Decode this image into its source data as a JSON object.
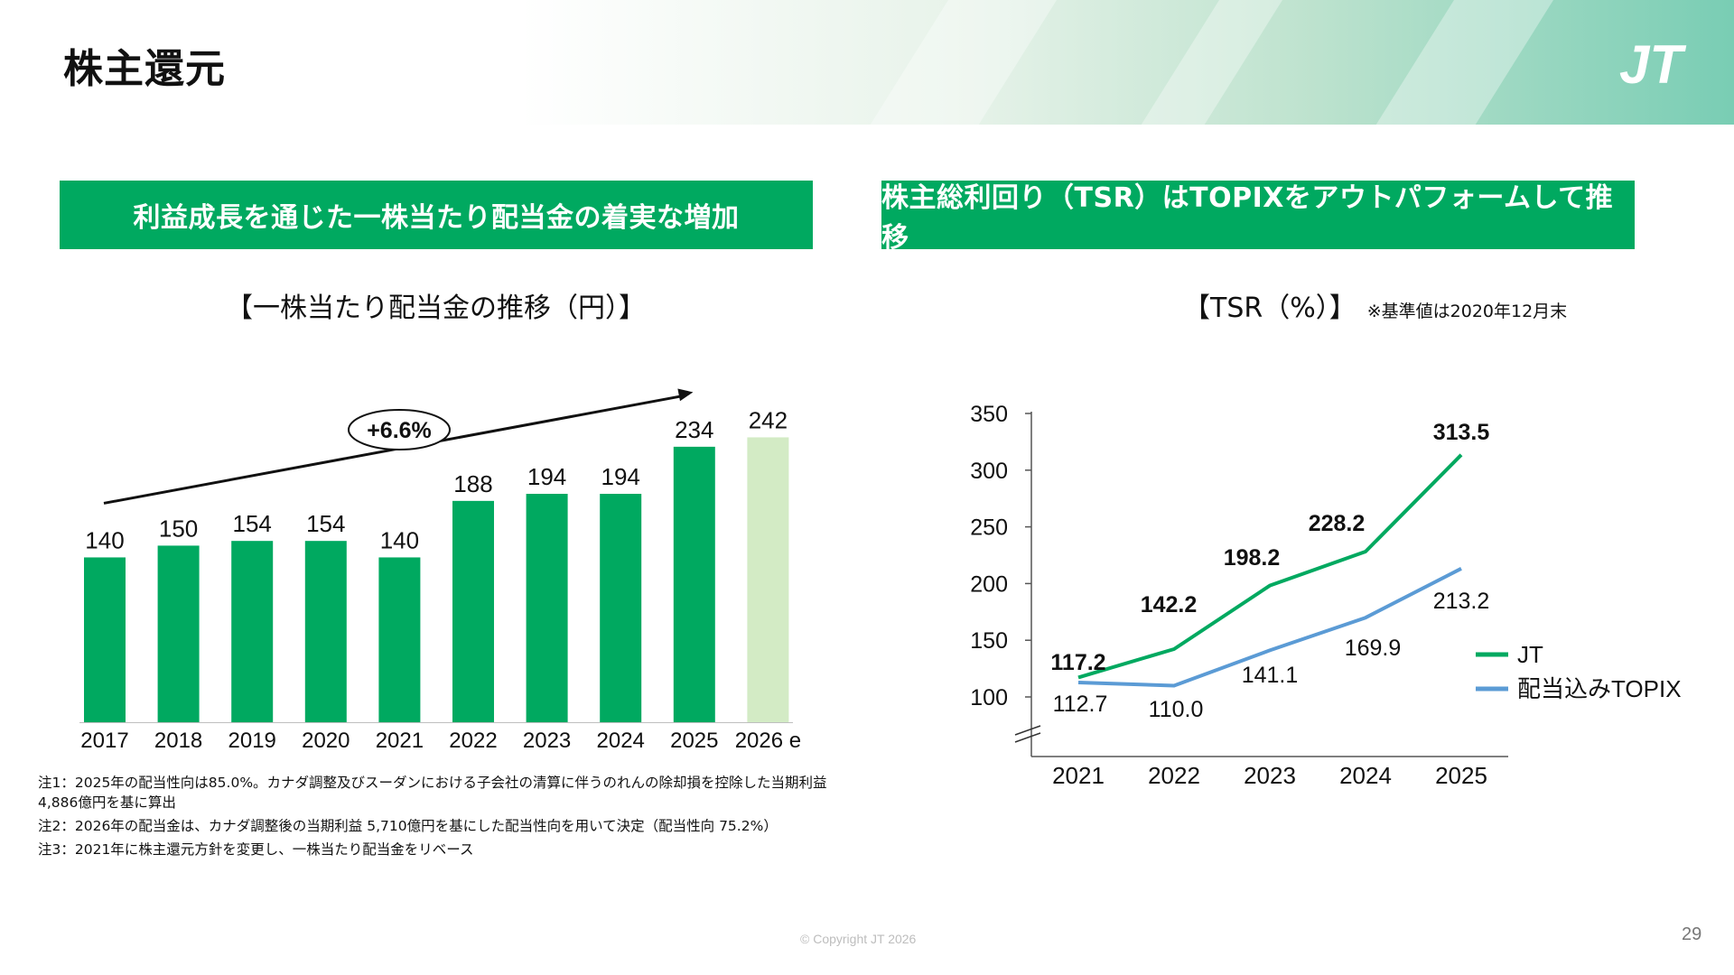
{
  "page": {
    "title": "株主還元",
    "logo_text": "JT",
    "copyright": "© Copyright JT 2026",
    "page_number": "29"
  },
  "left": {
    "banner": "利益成長を通じた一株当たり配当金の着実な増加",
    "chart_title": "【一株当たり配当金の推移（円）】",
    "growth_label": "+6.6%",
    "notes": [
      "注1：2025年の配当性向は85.0%。カナダ調整及びスーダンにおける子会社の清算に伴うのれんの除却損を控除した当期利益 4,886億円を基に算出",
      "注2：2026年の配当金は、カナダ調整後の当期利益 5,710億円を基にした配当性向を用いて決定（配当性向 75.2%）",
      "注3：2021年に株主還元方針を変更し、一株当たり配当金をリベース"
    ]
  },
  "right": {
    "banner": "株主総利回り（TSR）はTOPIXをアウトパフォームして推移",
    "chart_title": "【TSR（%）】",
    "chart_note": "※基準値は2020年12月末"
  },
  "colors": {
    "green": "#00a960",
    "light_green": "#d3ebc5",
    "blue": "#5b9bd5",
    "text": "#111111"
  },
  "chart_data": [
    {
      "type": "bar",
      "title": "【一株当たり配当金の推移（円）】",
      "categories": [
        "2017",
        "2018",
        "2019",
        "2020",
        "2021",
        "2022",
        "2023",
        "2024",
        "2025",
        "2026 e"
      ],
      "values": [
        140,
        150,
        154,
        154,
        140,
        188,
        194,
        194,
        234,
        242
      ],
      "labels": [
        "140",
        "150",
        "154",
        "154",
        "140",
        "188",
        "194",
        "194",
        "234",
        "242"
      ],
      "estimate_index": 9,
      "annotation": "+6.6%",
      "ylim": [
        0,
        242
      ]
    },
    {
      "type": "line",
      "title": "【TSR（%）】",
      "x": [
        "2021",
        "2022",
        "2023",
        "2024",
        "2025"
      ],
      "yticks": [
        "100",
        "150",
        "200",
        "250",
        "300",
        "350"
      ],
      "ylim": [
        100,
        350
      ],
      "axis_break": true,
      "series": [
        {
          "name": "JT",
          "values": [
            117.2,
            142.2,
            198.2,
            228.2,
            313.5
          ],
          "labels": [
            "117.2",
            "142.2",
            "198.2",
            "228.2",
            "313.5"
          ],
          "color": "#00a960"
        },
        {
          "name": "配当込みTOPIX",
          "values": [
            112.7,
            110.0,
            141.1,
            169.9,
            213.2
          ],
          "labels": [
            "112.7",
            "110.0",
            "141.1",
            "169.9",
            "213.2"
          ],
          "color": "#5b9bd5"
        }
      ],
      "legend": "right"
    }
  ]
}
